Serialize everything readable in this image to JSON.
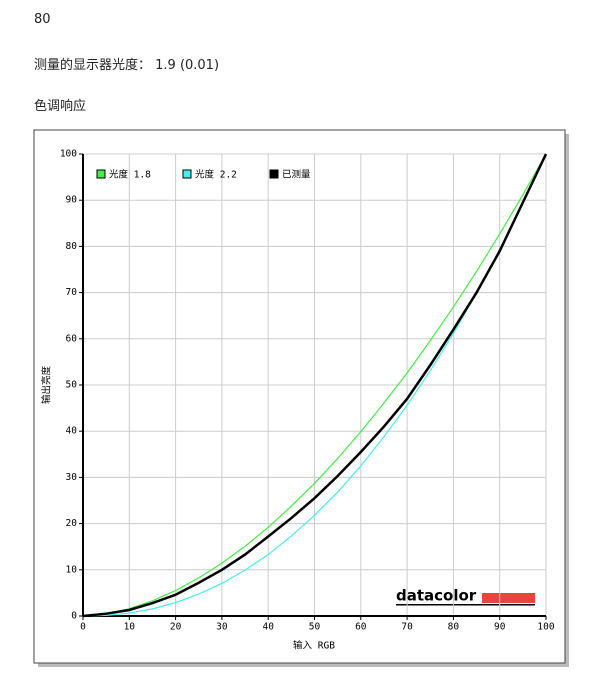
{
  "header": {
    "value": "80",
    "gamma": "测量的显示器光度： 1.9 (0.01)",
    "section": "色调响应"
  },
  "chart_data": {
    "type": "line",
    "xlabel": "输入 RGB",
    "ylabel": "输出亮度",
    "logo": "datacolor",
    "x": [
      0,
      5,
      10,
      15,
      20,
      25,
      30,
      35,
      40,
      45,
      50,
      55,
      60,
      65,
      70,
      75,
      80,
      85,
      90,
      95,
      100
    ],
    "series": [
      {
        "name": "光度 1.8",
        "color": "#44ee44",
        "values": [
          0,
          0.45,
          1.58,
          3.29,
          5.52,
          8.25,
          11.45,
          15.1,
          19.2,
          23.8,
          28.7,
          34.1,
          39.9,
          46.1,
          52.6,
          59.6,
          66.9,
          74.6,
          82.7,
          91.2,
          100
        ]
      },
      {
        "name": "光度 2.2",
        "color": "#44eeee",
        "values": [
          0,
          0.14,
          0.63,
          1.54,
          2.9,
          4.74,
          7.07,
          9.93,
          13.3,
          17.3,
          21.8,
          26.8,
          32.5,
          38.8,
          45.6,
          53.1,
          61.2,
          69.9,
          79.3,
          89.3,
          100
        ]
      },
      {
        "name": "已测量",
        "color": "#000000",
        "values": [
          0,
          0.5,
          1.3,
          2.8,
          4.6,
          7.2,
          10,
          13.3,
          17.2,
          21.2,
          25.5,
          30.3,
          35.5,
          41,
          47,
          54.3,
          62,
          70,
          79,
          89.5,
          100
        ]
      }
    ],
    "xlim": [
      0,
      100
    ],
    "ylim": [
      0,
      100
    ],
    "xticks": [
      0,
      10,
      20,
      30,
      40,
      50,
      60,
      70,
      80,
      90,
      100
    ],
    "yticks": [
      0,
      10,
      20,
      30,
      40,
      50,
      60,
      70,
      80,
      90,
      100
    ],
    "grid": true,
    "legend": "top-left"
  }
}
